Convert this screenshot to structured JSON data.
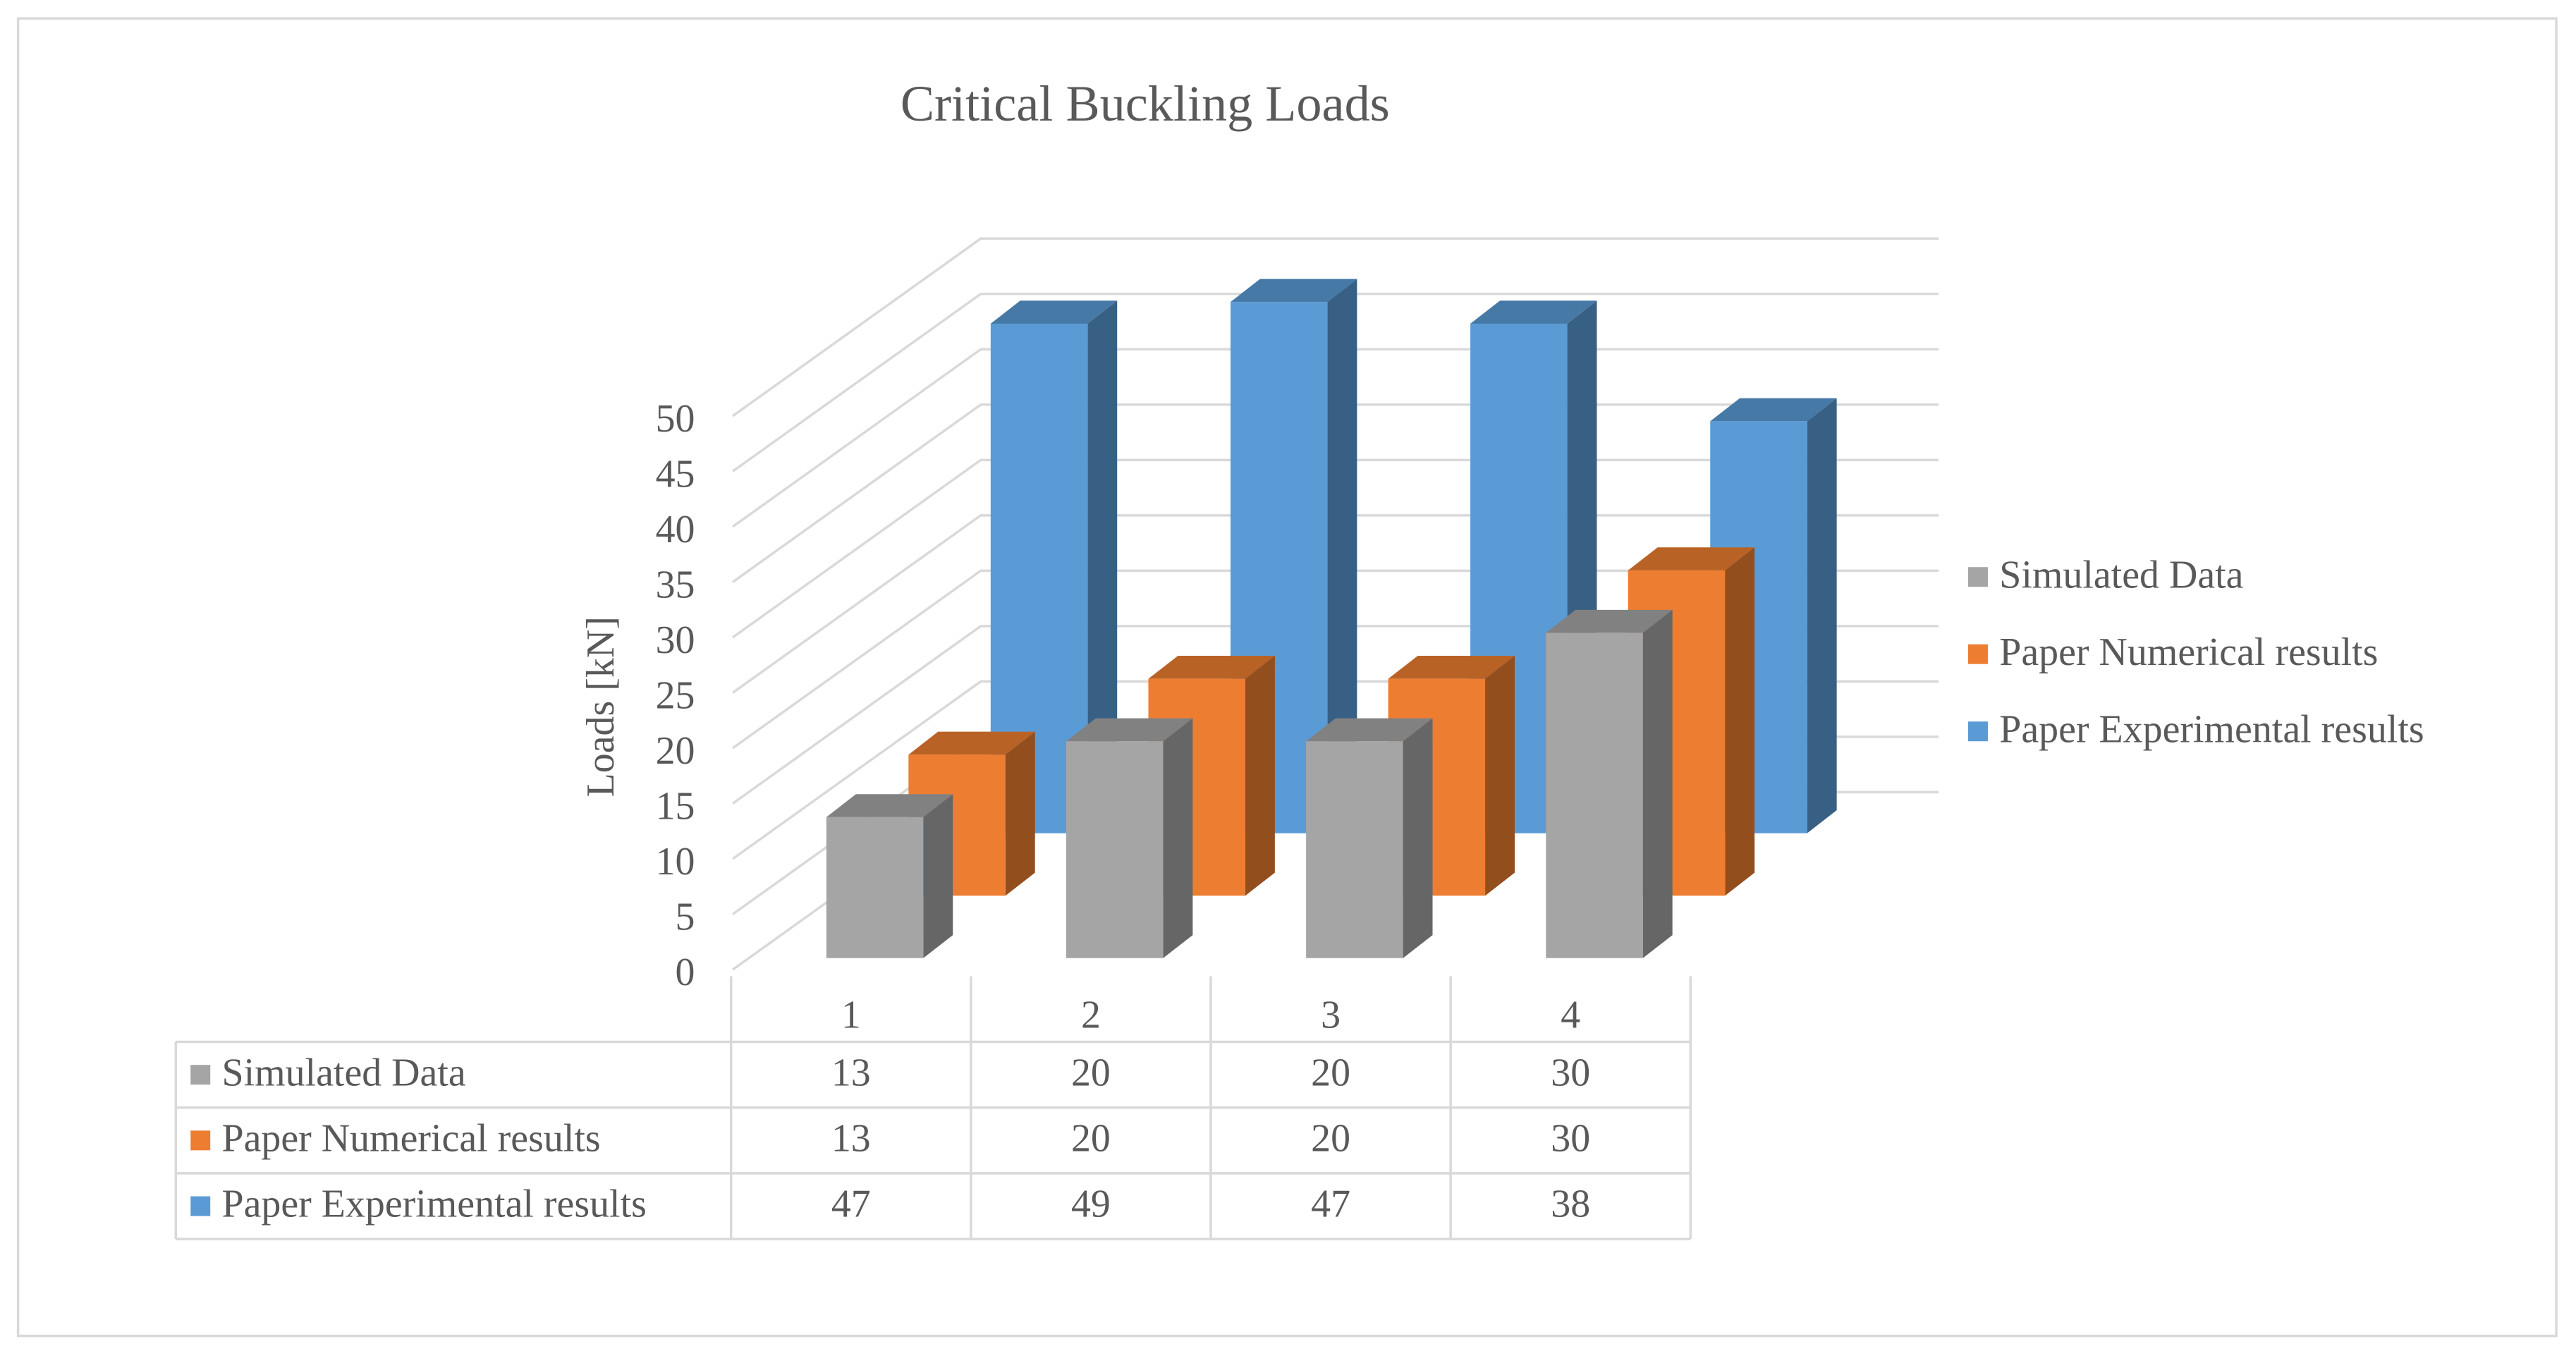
{
  "chart_data": {
    "type": "bar3d",
    "title": "Critical Buckling Loads",
    "y_label": "Loads [kN]",
    "categories": [
      "1",
      "2",
      "3",
      "4"
    ],
    "series": [
      {
        "name": "Simulated Data",
        "color": "#a5a5a5",
        "values": [
          13,
          20,
          20,
          30
        ]
      },
      {
        "name": "Paper Numerical results",
        "color": "#ed7d31",
        "values": [
          13,
          20,
          20,
          30
        ]
      },
      {
        "name": "Paper Experimental results",
        "color": "#5b9bd5",
        "values": [
          47,
          49,
          47,
          38
        ]
      }
    ],
    "ylim": [
      0,
      50
    ],
    "yticks": [
      0,
      5,
      10,
      15,
      20,
      25,
      30,
      35,
      40,
      45,
      50
    ],
    "grid": true,
    "legend": "right",
    "data_table": true
  }
}
